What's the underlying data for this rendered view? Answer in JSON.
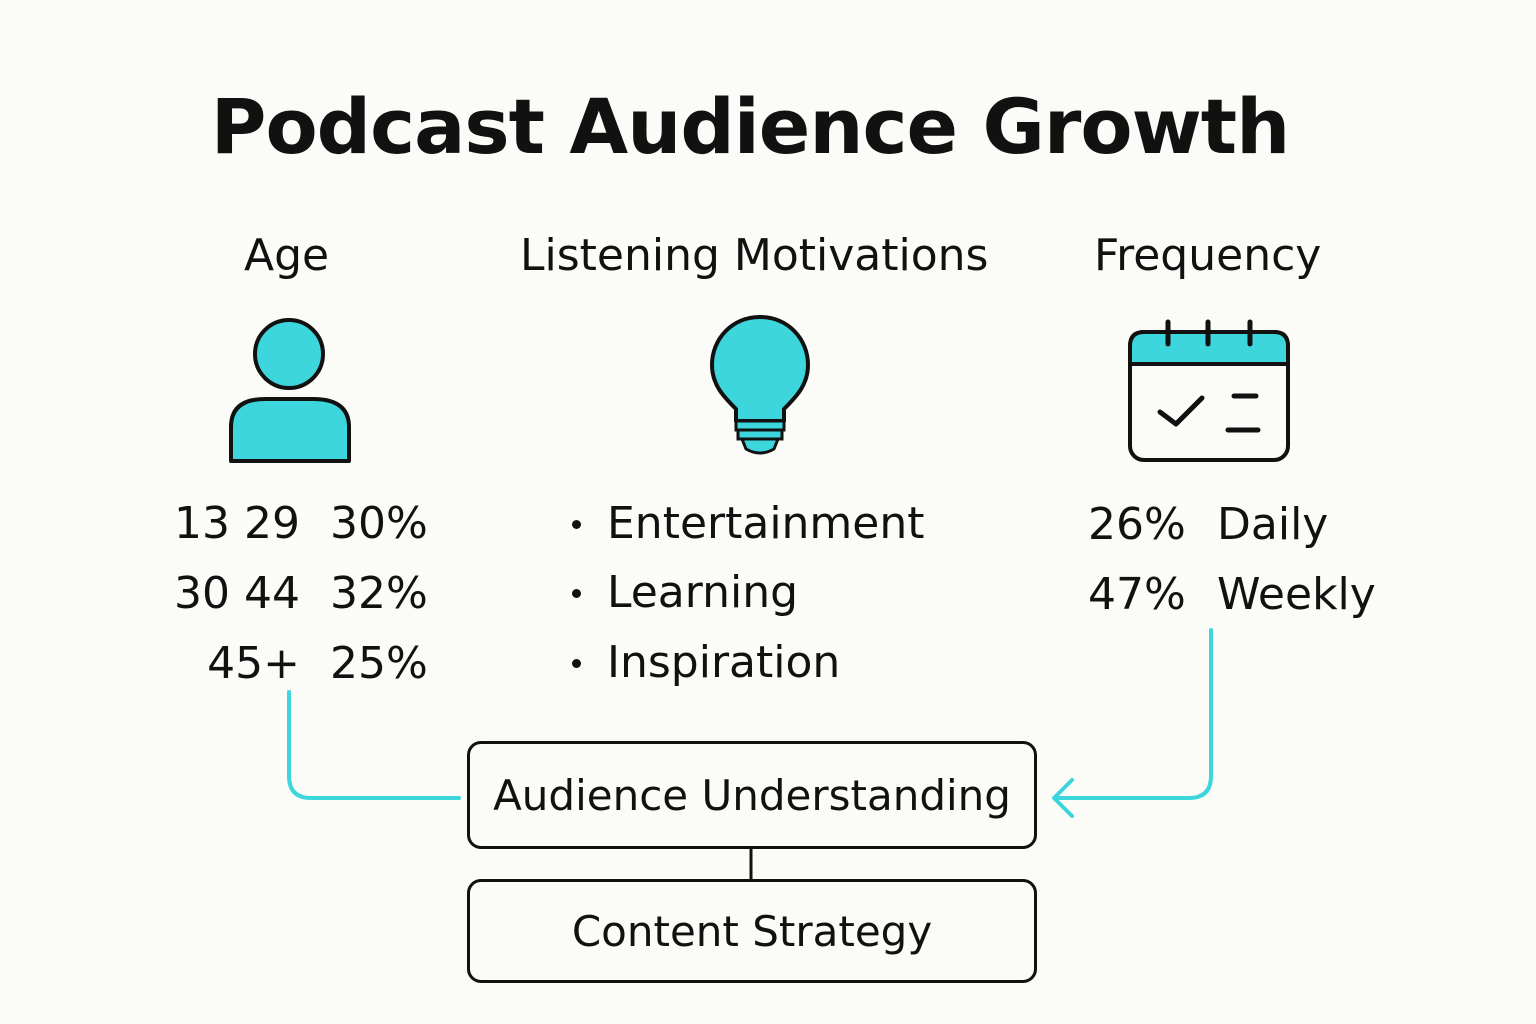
{
  "title": "Podcast Audience Growth",
  "columns": {
    "age": {
      "heading": "Age",
      "icon": "person-icon",
      "rows": [
        {
          "range": "13 29",
          "pct": "30%"
        },
        {
          "range": "30 44",
          "pct": "32%"
        },
        {
          "range": "45+",
          "pct": "25%"
        }
      ]
    },
    "motivations": {
      "heading": "Listening Motivations",
      "icon": "lightbulb-icon",
      "items": [
        "Entertainment",
        "Learning",
        "Inspiration"
      ]
    },
    "frequency": {
      "heading": "Frequency",
      "icon": "calendar-icon",
      "rows": [
        {
          "pct": "26%",
          "label": "Daily"
        },
        {
          "pct": "47%",
          "label": "Weekly"
        }
      ]
    }
  },
  "boxes": {
    "understanding": "Audience Understanding",
    "strategy": "Content Strategy"
  },
  "colors": {
    "accent": "#3dd6dc",
    "ink": "#111111",
    "background": "#fbfbf8"
  }
}
